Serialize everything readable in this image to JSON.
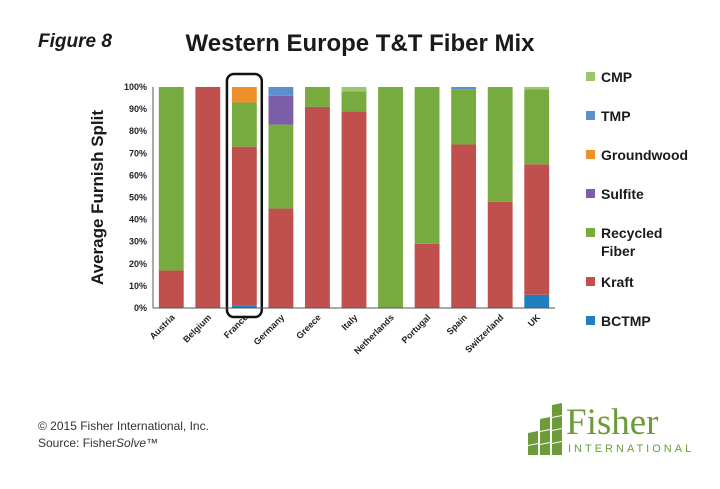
{
  "figure_label": "Figure 8",
  "chart_data": {
    "type": "bar",
    "stacked": true,
    "title": "Western Europe T&T Fiber Mix",
    "xlabel": "",
    "ylabel": "Average Furnish Split",
    "ylim": [
      0,
      100
    ],
    "y_ticks": [
      "0%",
      "10%",
      "20%",
      "30%",
      "40%",
      "50%",
      "60%",
      "70%",
      "80%",
      "90%",
      "100%"
    ],
    "categories": [
      "Austria",
      "Belgium",
      "France",
      "Germany",
      "Greece",
      "Italy",
      "Netherlands",
      "Portugal",
      "Spain",
      "Switzerland",
      "UK"
    ],
    "highlighted_category": "France",
    "grid": false,
    "legend_position": "right",
    "series": [
      {
        "name": "BCTMP",
        "color": "#1f7fc0",
        "values": [
          0,
          0,
          1,
          0,
          0,
          0,
          0,
          0,
          0,
          0,
          6
        ]
      },
      {
        "name": "Kraft",
        "color": "#c0504d",
        "values": [
          17,
          100,
          72,
          45,
          91,
          89,
          0,
          29,
          74,
          48,
          59
        ]
      },
      {
        "name": "Recycled Fiber",
        "color": "#77ab3f",
        "values": [
          83,
          0,
          20,
          38,
          9,
          9,
          100,
          71,
          25,
          52,
          34
        ]
      },
      {
        "name": "Sulfite",
        "color": "#7b5ea7",
        "values": [
          0,
          0,
          0,
          13,
          0,
          0,
          0,
          0,
          0,
          0,
          0
        ]
      },
      {
        "name": "Groundwood",
        "color": "#ef8f2b",
        "values": [
          0,
          0,
          7,
          0,
          0,
          0,
          0,
          0,
          0,
          0,
          0
        ]
      },
      {
        "name": "TMP",
        "color": "#5b8fd0",
        "values": [
          0,
          0,
          0,
          4,
          0,
          0,
          0,
          0,
          1,
          0,
          0
        ]
      },
      {
        "name": "CMP",
        "color": "#9bc76b",
        "values": [
          0,
          0,
          0,
          0,
          0,
          2,
          0,
          0,
          0,
          0,
          1
        ]
      }
    ],
    "legend_order": [
      {
        "lines": [
          "CMP"
        ],
        "color": "#9bc76b"
      },
      {
        "lines": [
          "TMP"
        ],
        "color": "#5b8fd0"
      },
      {
        "lines": [
          "Groundwood"
        ],
        "color": "#ef8f2b"
      },
      {
        "lines": [
          "Sulfite"
        ],
        "color": "#7b5ea7"
      },
      {
        "lines": [
          "Recycled",
          "Fiber"
        ],
        "color": "#77ab3f"
      },
      {
        "lines": [
          "Kraft"
        ],
        "color": "#c0504d"
      },
      {
        "lines": [
          "BCTMP"
        ],
        "color": "#1f7fc0"
      }
    ]
  },
  "footer": {
    "copyright": "© 2015 Fisher International, Inc.",
    "source_prefix": "Source: Fisher",
    "source_product": "Solve",
    "source_suffix": "™"
  },
  "logo": {
    "name": "Fisher",
    "subtitle": "INTERNATIONAL",
    "color": "#6d9b3a"
  }
}
